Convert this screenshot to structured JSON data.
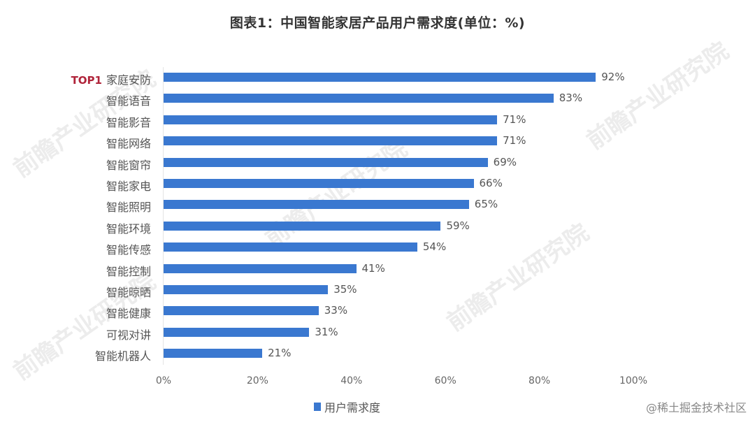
{
  "title": "图表1：中国智能家居产品用户需求度(单位：%)",
  "watermark": "前瞻产业研究院",
  "credit": "@稀土掘金技术社区",
  "chart_data": {
    "type": "bar",
    "orientation": "horizontal",
    "title": "图表1：中国智能家居产品用户需求度(单位：%)",
    "xlabel": "",
    "ylabel": "",
    "xlim": [
      0,
      100
    ],
    "x_ticks": [
      "0%",
      "20%",
      "40%",
      "60%",
      "80%",
      "100%"
    ],
    "grid": false,
    "legend_position": "bottom",
    "highlight": {
      "category": "家庭安防",
      "tag": "TOP1"
    },
    "categories": [
      "家庭安防",
      "智能语音",
      "智能影音",
      "智能网络",
      "智能窗帘",
      "智能家电",
      "智能照明",
      "智能环境",
      "智能传感",
      "智能控制",
      "智能晾晒",
      "智能健康",
      "可视对讲",
      "智能机器人"
    ],
    "series": [
      {
        "name": "用户需求度",
        "color": "#3a78d0",
        "values": [
          92,
          83,
          71,
          71,
          69,
          66,
          65,
          59,
          54,
          41,
          35,
          33,
          31,
          21
        ]
      }
    ]
  },
  "labels": {
    "top_tag": "TOP1",
    "legend": "用户需求度",
    "values_text": [
      "92%",
      "83%",
      "71%",
      "71%",
      "69%",
      "66%",
      "65%",
      "59%",
      "54%",
      "41%",
      "35%",
      "33%",
      "31%",
      "21%"
    ]
  }
}
